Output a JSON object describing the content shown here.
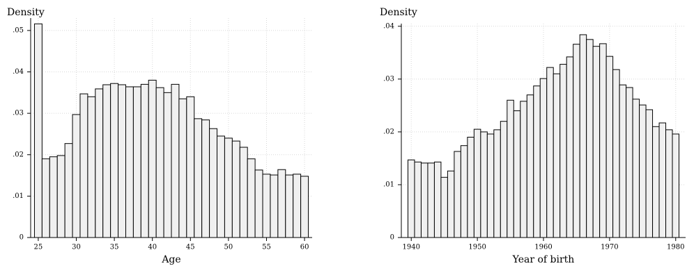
{
  "chart_data": [
    {
      "type": "histogram",
      "ylabel": "Density",
      "xlabel": "Age",
      "bins": [
        24.5,
        25.5,
        26.5,
        27.5,
        28.5,
        29.5,
        30.5,
        31.5,
        32.5,
        33.5,
        34.5,
        35.5,
        36.5,
        37.5,
        38.5,
        39.5,
        40.5,
        41.5,
        42.5,
        43.5,
        44.5,
        45.5,
        46.5,
        47.5,
        48.5,
        49.5,
        50.5,
        51.5,
        52.5,
        53.5,
        54.5,
        55.5,
        56.5,
        57.5,
        58.5,
        59.5,
        60.5
      ],
      "values": [
        0.0516,
        0.019,
        0.0195,
        0.0198,
        0.0227,
        0.0297,
        0.0347,
        0.034,
        0.0359,
        0.0369,
        0.0372,
        0.0369,
        0.0364,
        0.0364,
        0.037,
        0.038,
        0.0362,
        0.035,
        0.037,
        0.0335,
        0.034,
        0.0287,
        0.0284,
        0.0263,
        0.0245,
        0.024,
        0.0233,
        0.0218,
        0.019,
        0.0163,
        0.0153,
        0.0151,
        0.0164,
        0.0151,
        0.0153,
        0.0148
      ],
      "color": "#f0f0f0",
      "xlim": [
        24,
        61
      ],
      "ylim": [
        0,
        0.053
      ],
      "xticks": [
        25,
        30,
        35,
        40,
        45,
        50,
        55,
        60
      ],
      "yticks": [
        0,
        {
          "value": 0.01,
          "label": ".01"
        },
        {
          "value": 0.02,
          "label": ".02"
        },
        {
          "value": 0.03,
          "label": ".03"
        },
        {
          "value": 0.04,
          "label": ".04"
        },
        {
          "value": 0.05,
          "label": ".05"
        }
      ],
      "grid": true
    },
    {
      "type": "histogram",
      "ylabel": "Density",
      "xlabel": "Year of birth",
      "bins": [
        1939.5,
        1940.5,
        1941.5,
        1942.5,
        1943.5,
        1944.5,
        1945.5,
        1946.5,
        1947.5,
        1948.5,
        1949.5,
        1950.5,
        1951.5,
        1952.5,
        1953.5,
        1954.5,
        1955.5,
        1956.5,
        1957.5,
        1958.5,
        1959.5,
        1960.5,
        1961.5,
        1962.5,
        1963.5,
        1964.5,
        1965.5,
        1966.5,
        1967.5,
        1968.5,
        1969.5,
        1970.5,
        1971.5,
        1972.5,
        1973.5,
        1974.5,
        1975.5,
        1976.5,
        1977.5,
        1978.5,
        1979.5,
        1980.5
      ],
      "values": [
        0.0147,
        0.0143,
        0.0141,
        0.0141,
        0.0143,
        0.0114,
        0.0126,
        0.0163,
        0.0174,
        0.019,
        0.0205,
        0.02,
        0.0196,
        0.0204,
        0.022,
        0.026,
        0.024,
        0.0258,
        0.027,
        0.0287,
        0.0301,
        0.0322,
        0.031,
        0.0328,
        0.0342,
        0.0366,
        0.0384,
        0.0375,
        0.0362,
        0.0367,
        0.0343,
        0.0318,
        0.0289,
        0.0284,
        0.0262,
        0.0251,
        0.0242,
        0.021,
        0.0217,
        0.0204,
        0.0196
      ],
      "color": "#f0f0f0",
      "xlim": [
        1938.5,
        1981.5
      ],
      "ylim": [
        0,
        0.0405
      ],
      "xticks": [
        1940,
        1950,
        1960,
        1970,
        1980
      ],
      "yticks": [
        0,
        {
          "value": 0.01,
          "label": ".01"
        },
        {
          "value": 0.02,
          "label": ".02"
        },
        {
          "value": 0.03,
          "label": ".03"
        },
        {
          "value": 0.04,
          "label": ".04"
        }
      ],
      "grid": true
    }
  ]
}
